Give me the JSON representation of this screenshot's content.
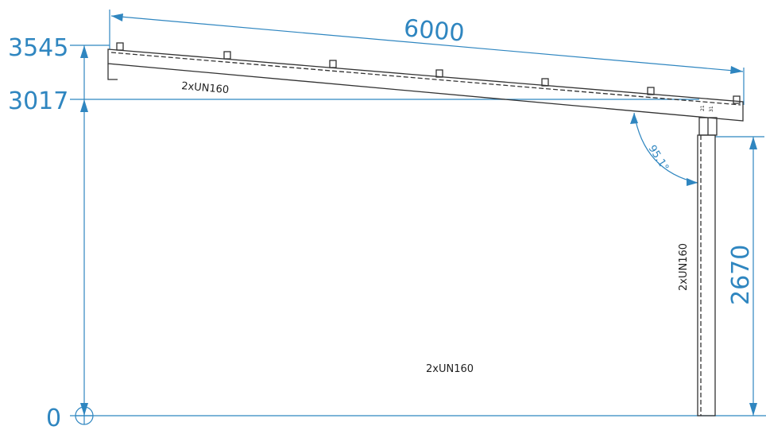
{
  "colors": {
    "dimension": "#2f86c0",
    "structure": "#333333",
    "background": "#ffffff"
  },
  "drawing": {
    "levels": [
      {
        "label": "3545"
      },
      {
        "label": "3017"
      },
      {
        "label": "0"
      }
    ],
    "span_dimension": "6000",
    "column_height": "2670",
    "angle": "95.1°",
    "member_labels": {
      "beam": "2xUN160",
      "column": "2xUN160",
      "bottom": "2xUN160"
    },
    "connection_marks": [
      "21",
      "31"
    ]
  }
}
